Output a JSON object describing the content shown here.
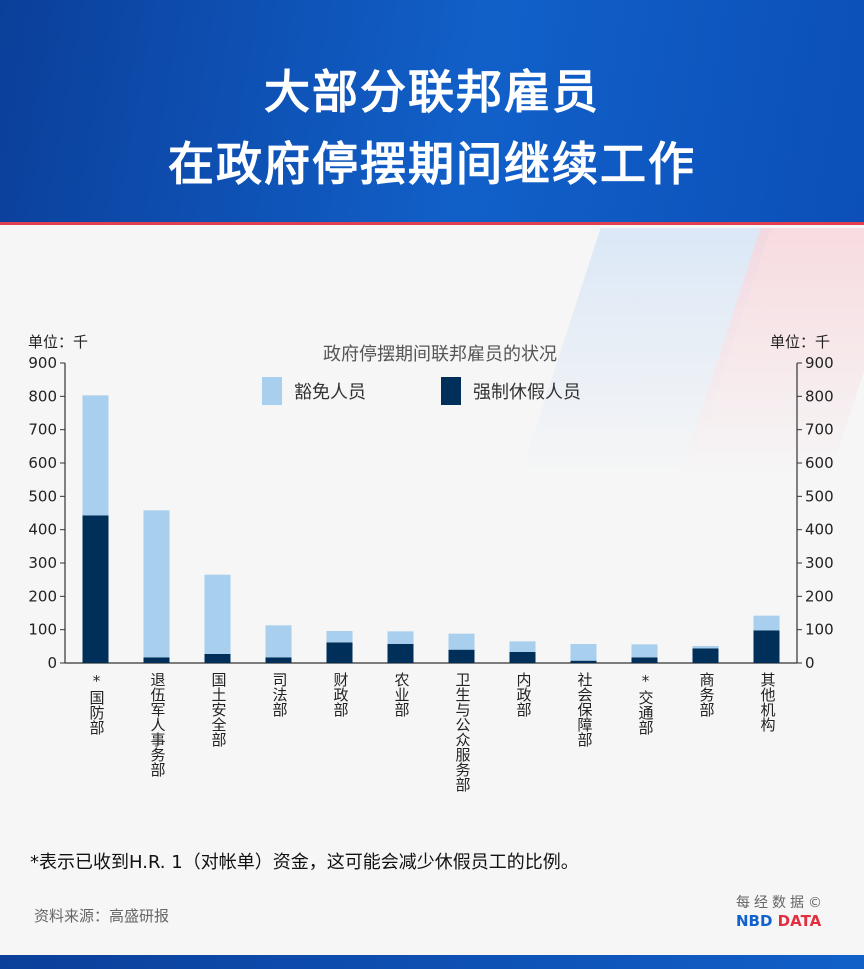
{
  "header": {
    "title_line1": "大部分联邦雇员",
    "title_line2": "在政府停摆期间继续工作"
  },
  "chart_data": {
    "type": "bar",
    "stacked": true,
    "title": "政府停摆期间联邦雇员的状况",
    "unit_left": "单位：千",
    "unit_right": "单位：千",
    "ylim": [
      0,
      900
    ],
    "yticks": [
      0,
      100,
      200,
      300,
      400,
      500,
      600,
      700,
      800,
      900
    ],
    "categories": [
      "*国防部",
      "退伍军人事务部",
      "国土安全部",
      "司法部",
      "财政部",
      "农业部",
      "卫生与公众服务部",
      "内政部",
      "社会保障部",
      "*交通部",
      "商务部",
      "其他机构"
    ],
    "series": [
      {
        "name": "强制休假人员",
        "color": "#00305a",
        "values": [
          443,
          17,
          27,
          17,
          62,
          57,
          40,
          33,
          7,
          17,
          44,
          98
        ]
      },
      {
        "name": "豁免人员",
        "color": "#a8cfee",
        "values": [
          360,
          441,
          238,
          96,
          34,
          38,
          48,
          32,
          50,
          39,
          7,
          44
        ]
      }
    ],
    "legend": "top-center",
    "grid": false
  },
  "note": "*表示已收到H.R. 1（对帐单）资金，这可能会减少休假员工的比例。",
  "source": "资料来源：高盛研报",
  "logo": {
    "cn": "每经数据©",
    "en_blue": "NBD ",
    "en_red": "DATA"
  }
}
